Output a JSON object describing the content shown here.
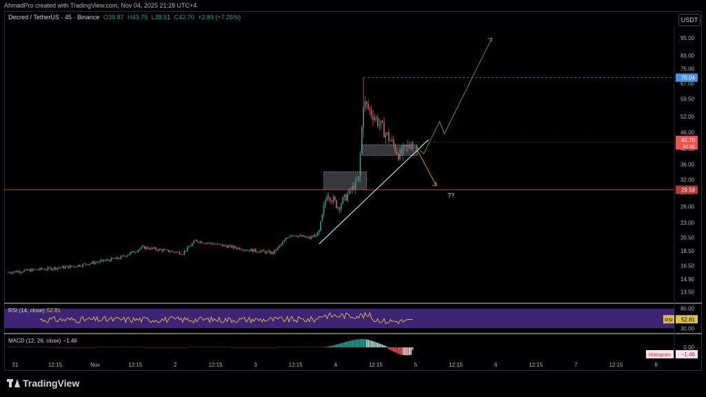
{
  "header": {
    "credit": "AhmadPro created with TradingView.com, Nov 04, 2025 21:28 UTC+4"
  },
  "legend": {
    "symbol": "Decred / TetherUS · 45 · Binance",
    "open_label": "O",
    "open": "39.87",
    "high_label": "H",
    "high": "43.79",
    "low_label": "L",
    "low": "38.51",
    "close_label": "C",
    "close": "42.70",
    "change": "+2.89 (+7.26%)"
  },
  "currency_button": "USDT",
  "rsi_legend": {
    "label": "RSI (14, close)",
    "value": "52.81"
  },
  "macd_legend": {
    "label": "MACD (12, 26, close)",
    "value": "−1.46"
  },
  "annotation_text": "??",
  "brand": "TradingView",
  "colors": {
    "up": "#26a69a",
    "down": "#ef5350",
    "rsi_band": "#3d2475",
    "rsi_line": "#e1c04a",
    "support": "#b83b3b",
    "target": "#4a90e2",
    "projection_up": "#3fa34d",
    "projection_down": "#e68a2e"
  },
  "chart_data": {
    "type": "candlestick",
    "price_axis": {
      "scale": "log",
      "ticks": [
        "95.00",
        "83.00",
        "75.00",
        "67.00",
        "59.50",
        "52.00",
        "46.00",
        "40.50",
        "36.00",
        "32.00",
        "29.00",
        "26.00",
        "23.00",
        "20.50",
        "18.50",
        "16.50",
        "14.90",
        "13.50"
      ],
      "ylim": [
        12.5,
        104
      ]
    },
    "time_axis": {
      "ticks": [
        "31",
        "12:15",
        "Nov",
        "12:15",
        "2",
        "12:15",
        "3",
        "12:15",
        "4",
        "12:15",
        "5",
        "12:15",
        "6",
        "12:15",
        "7",
        "12:15",
        "8"
      ]
    },
    "ohlc_anchors": [
      {
        "i": 0,
        "price": 15.7
      },
      {
        "i": 40,
        "price": 16.4
      },
      {
        "i": 70,
        "price": 17.5
      },
      {
        "i": 85,
        "price": 19.0
      },
      {
        "i": 110,
        "price": 18.2
      },
      {
        "i": 118,
        "price": 20.0
      },
      {
        "i": 150,
        "price": 18.7
      },
      {
        "i": 167,
        "price": 18.2
      },
      {
        "i": 178,
        "price": 21.0
      },
      {
        "i": 190,
        "price": 20.4
      },
      {
        "i": 196,
        "price": 21.2
      },
      {
        "i": 201,
        "price": 29.0
      },
      {
        "i": 208,
        "price": 26.0
      },
      {
        "i": 214,
        "price": 28.5
      },
      {
        "i": 221,
        "price": 32.0
      },
      {
        "i": 224,
        "price": 58.0
      },
      {
        "i": 232,
        "price": 51.0
      },
      {
        "i": 240,
        "price": 44.0
      },
      {
        "i": 247,
        "price": 38.5
      },
      {
        "i": 255,
        "price": 42.7
      }
    ],
    "last_close": 42.7,
    "target_level": 70.04,
    "support_level": 29.58,
    "candle_countdown": "31:31",
    "drawings": {
      "trendline": [
        {
          "x": 196,
          "y": 19.5
        },
        {
          "x": 265,
          "y": 43.5
        }
      ],
      "projection_up": [
        {
          "x": 257,
          "y": 41.5
        },
        {
          "x": 262,
          "y": 39.0
        },
        {
          "x": 272,
          "y": 50.0
        },
        {
          "x": 275,
          "y": 45.5
        },
        {
          "x": 305,
          "y": 95.0
        }
      ],
      "projection_down": [
        {
          "x": 257,
          "y": 41.0
        },
        {
          "x": 270,
          "y": 30.5
        }
      ],
      "zones": [
        {
          "from": 199,
          "to": 226,
          "low": 29.6,
          "high": 34.0
        },
        {
          "from": 223,
          "to": 258,
          "low": 38.5,
          "high": 41.8
        }
      ]
    },
    "rsi": {
      "value": 52.81,
      "upper": 80.0,
      "lower": 30.0,
      "tick_upper": "80.00",
      "tick_lower": "30.00"
    },
    "macd": {
      "value": -1.46,
      "zero_tick": "0.00",
      "histogram_label": "Histogram"
    }
  }
}
